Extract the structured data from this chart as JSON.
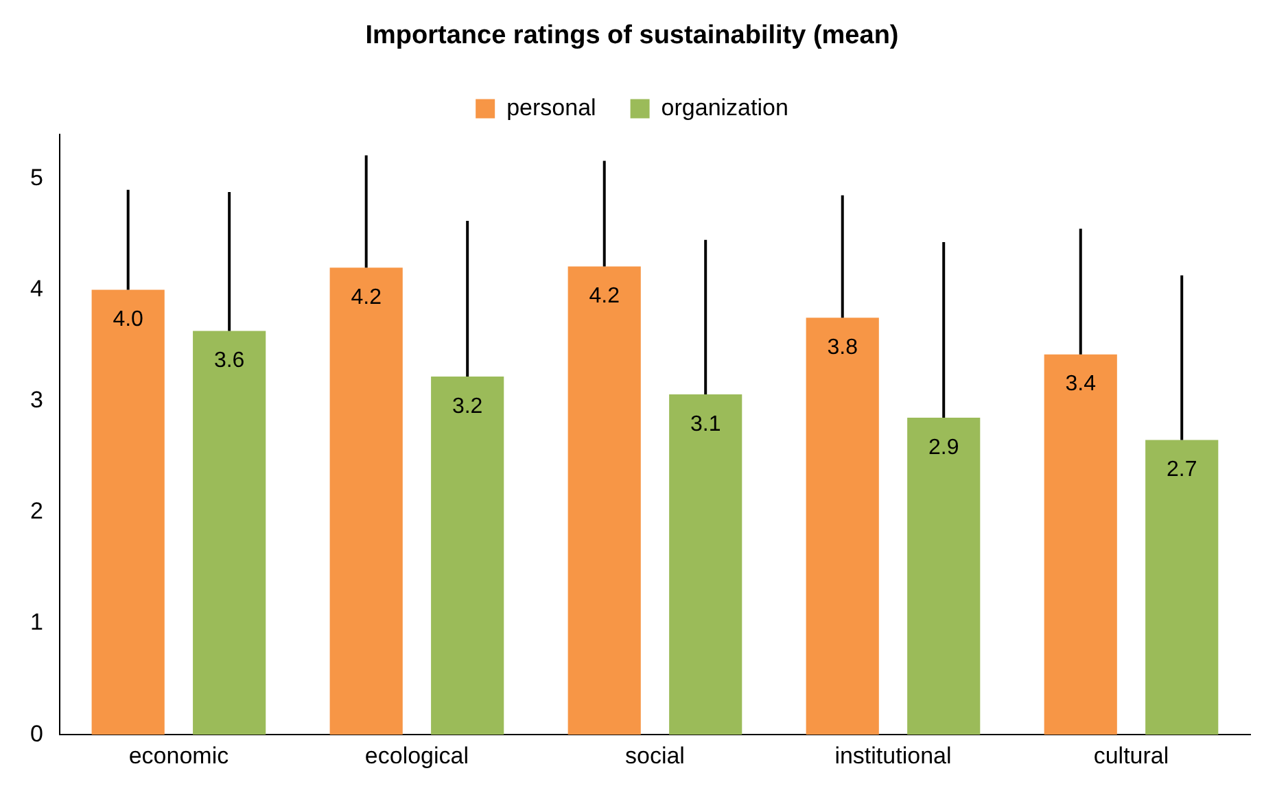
{
  "chart_data": {
    "type": "bar",
    "title": "Importance ratings of sustainability (mean)",
    "categories": [
      "economic",
      "ecological",
      "social",
      "institutional",
      "cultural"
    ],
    "series": [
      {
        "name": "personal",
        "color": "#f79646",
        "values": [
          4.0,
          4.2,
          4.21,
          3.75,
          3.42
        ],
        "value_labels": [
          "4.0",
          "4.2",
          "4.2",
          "3.8",
          "3.4"
        ],
        "errors": [
          [
            4.0,
            4.9
          ],
          [
            4.2,
            5.21
          ],
          [
            4.21,
            5.16
          ],
          [
            3.75,
            4.85
          ],
          [
            3.42,
            4.55
          ]
        ]
      },
      {
        "name": "organization",
        "color": "#9bbb59",
        "values": [
          3.63,
          3.22,
          3.06,
          2.85,
          2.65
        ],
        "value_labels": [
          "3.6",
          "3.2",
          "3.1",
          "2.9",
          "2.7"
        ],
        "errors": [
          [
            3.63,
            4.88
          ],
          [
            3.22,
            4.62
          ],
          [
            3.06,
            4.45
          ],
          [
            2.85,
            4.43
          ],
          [
            2.65,
            4.13
          ]
        ]
      }
    ],
    "ylim": [
      0,
      5.4
    ],
    "yticks": [
      0,
      1,
      2,
      3,
      4,
      5
    ],
    "grid": false,
    "legend": "top"
  }
}
